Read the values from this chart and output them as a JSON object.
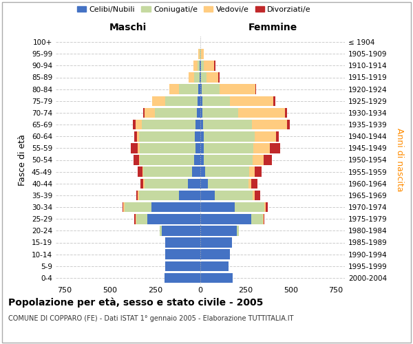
{
  "age_groups": [
    "0-4",
    "5-9",
    "10-14",
    "15-19",
    "20-24",
    "25-29",
    "30-34",
    "35-39",
    "40-44",
    "45-49",
    "50-54",
    "55-59",
    "60-64",
    "65-69",
    "70-74",
    "75-79",
    "80-84",
    "85-89",
    "90-94",
    "95-99",
    "100+"
  ],
  "birth_years": [
    "2000-2004",
    "1995-1999",
    "1990-1994",
    "1985-1989",
    "1980-1984",
    "1975-1979",
    "1970-1974",
    "1965-1969",
    "1960-1964",
    "1955-1959",
    "1950-1954",
    "1945-1949",
    "1940-1944",
    "1935-1939",
    "1930-1934",
    "1925-1929",
    "1920-1924",
    "1915-1919",
    "1910-1914",
    "1905-1909",
    "≤ 1904"
  ],
  "male": {
    "celibi": [
      200,
      195,
      195,
      195,
      215,
      295,
      270,
      120,
      70,
      45,
      35,
      25,
      30,
      25,
      20,
      15,
      10,
      5,
      2,
      0,
      0
    ],
    "coniugati": [
      0,
      0,
      0,
      0,
      10,
      60,
      150,
      220,
      240,
      270,
      300,
      310,
      310,
      300,
      230,
      180,
      110,
      30,
      15,
      5,
      0
    ],
    "vedovi": [
      0,
      0,
      0,
      0,
      0,
      5,
      5,
      5,
      5,
      5,
      5,
      10,
      10,
      35,
      60,
      70,
      50,
      30,
      20,
      5,
      0
    ],
    "divorziati": [
      0,
      0,
      0,
      0,
      0,
      5,
      5,
      10,
      15,
      25,
      30,
      40,
      15,
      15,
      5,
      0,
      0,
      0,
      0,
      0,
      0
    ]
  },
  "female": {
    "nubili": [
      180,
      155,
      165,
      175,
      200,
      280,
      190,
      80,
      40,
      25,
      20,
      20,
      20,
      15,
      10,
      10,
      8,
      5,
      3,
      0,
      0
    ],
    "coniugate": [
      0,
      0,
      0,
      0,
      15,
      65,
      165,
      210,
      225,
      245,
      270,
      275,
      280,
      270,
      200,
      155,
      100,
      30,
      15,
      5,
      0
    ],
    "vedove": [
      0,
      0,
      0,
      0,
      0,
      5,
      5,
      10,
      15,
      30,
      60,
      90,
      120,
      195,
      260,
      240,
      195,
      65,
      60,
      15,
      0
    ],
    "divorziate": [
      0,
      0,
      0,
      0,
      0,
      5,
      15,
      30,
      35,
      40,
      45,
      55,
      15,
      15,
      10,
      10,
      5,
      5,
      5,
      0,
      0
    ]
  },
  "colors": {
    "celibi": "#4472C4",
    "coniugati": "#C5D9A0",
    "vedovi": "#FFCC80",
    "divorziati": "#C0282A"
  },
  "xlim": 800,
  "title": "Popolazione per età, sesso e stato civile - 2005",
  "subtitle": "COMUNE DI COPPARO (FE) - Dati ISTAT 1° gennaio 2005 - Elaborazione TUTTITALIA.IT",
  "ylabel_left": "Fasce di età",
  "ylabel_right": "Anni di nascita",
  "xlabel_left": "Maschi",
  "xlabel_right": "Femmine",
  "bg_color": "#ffffff",
  "grid_color": "#cccccc"
}
